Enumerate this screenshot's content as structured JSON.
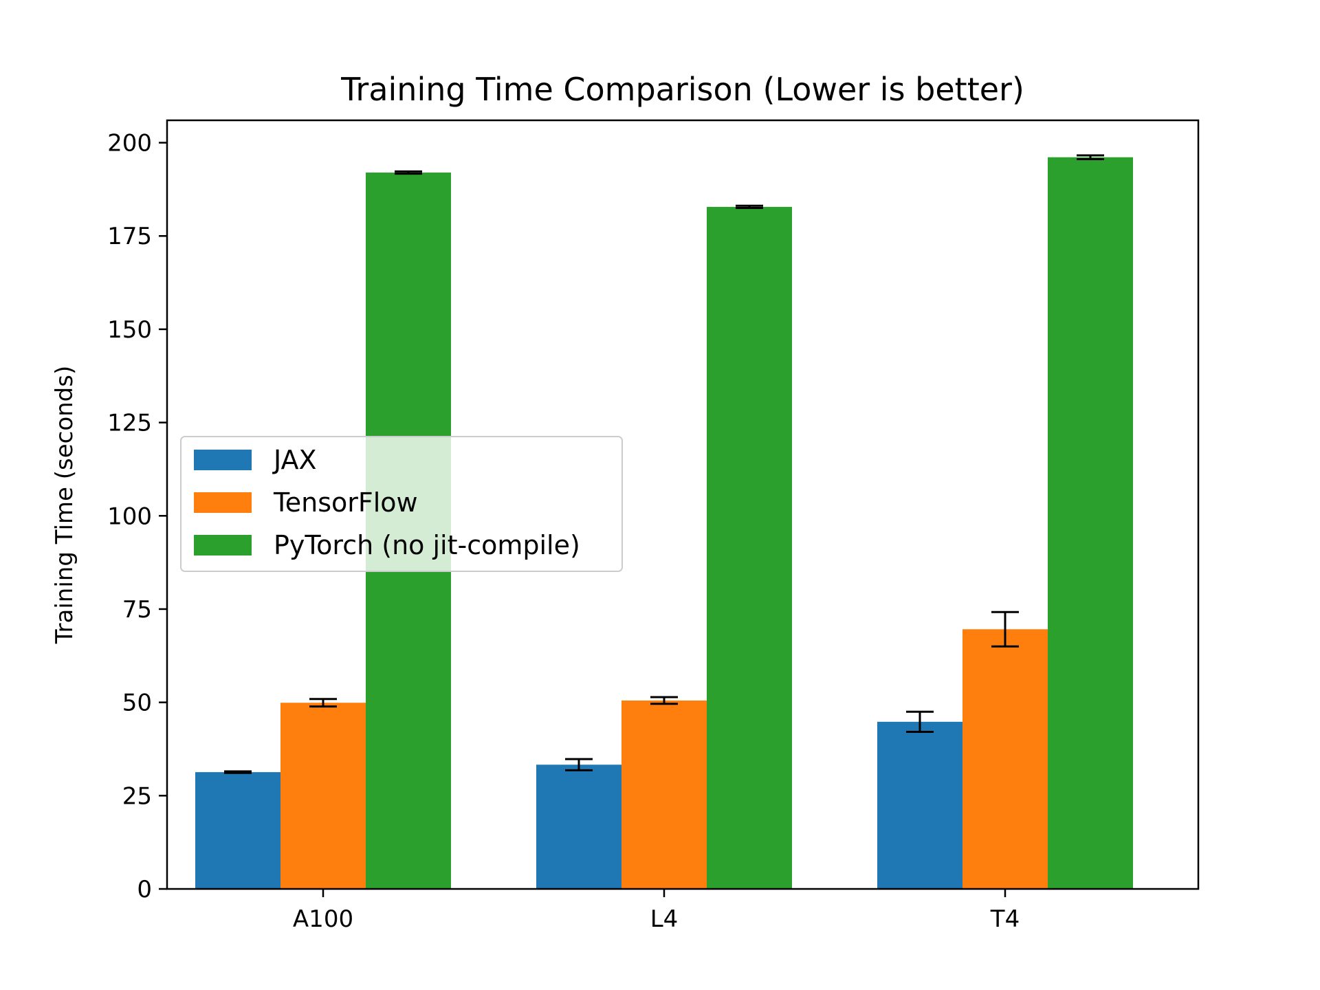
{
  "chart_data": {
    "type": "bar",
    "title": "Training Time Comparison (Lower is better)",
    "xlabel": "",
    "ylabel": "Training Time (seconds)",
    "categories": [
      "A100",
      "L4",
      "T4"
    ],
    "ylim": [
      0,
      206
    ],
    "yticks": [
      0,
      25,
      50,
      75,
      100,
      125,
      150,
      175,
      200
    ],
    "grid": false,
    "legend_position": "center-left",
    "series": [
      {
        "name": "JAX",
        "color": "#1f77b4",
        "values": [
          31.3,
          33.3,
          44.8
        ],
        "errors": [
          0.2,
          1.5,
          2.7
        ]
      },
      {
        "name": "TensorFlow",
        "color": "#ff7f0e",
        "values": [
          49.9,
          50.5,
          69.6
        ],
        "errors": [
          1.0,
          0.9,
          4.6
        ]
      },
      {
        "name": "PyTorch (no jit-compile)",
        "color": "#2ca02c",
        "values": [
          192.0,
          182.8,
          196.1
        ],
        "errors": [
          0.3,
          0.3,
          0.5
        ]
      }
    ]
  }
}
